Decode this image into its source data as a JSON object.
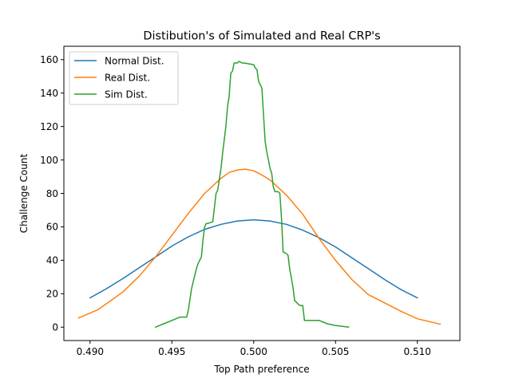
{
  "chart_data": {
    "type": "line",
    "title": "Distibution's of Simulated and Real CRP's",
    "xlabel": "Top Path preference",
    "ylabel": "Challenge Count",
    "xlim": [
      0.4884,
      0.5126
    ],
    "ylim": [
      -8,
      168
    ],
    "xticks": [
      0.49,
      0.495,
      0.5,
      0.505,
      0.51
    ],
    "xtick_labels": [
      "0.490",
      "0.495",
      "0.500",
      "0.505",
      "0.510"
    ],
    "yticks": [
      0,
      20,
      40,
      60,
      80,
      100,
      120,
      140,
      160
    ],
    "ytick_labels": [
      "0",
      "20",
      "40",
      "60",
      "80",
      "100",
      "120",
      "140",
      "160"
    ],
    "grid": false,
    "legend_position": "upper left",
    "series": [
      {
        "name": "Normal Dist.",
        "color": "#1f77b4",
        "x": [
          0.49,
          0.491,
          0.492,
          0.493,
          0.494,
          0.495,
          0.496,
          0.497,
          0.498,
          0.499,
          0.5,
          0.501,
          0.502,
          0.503,
          0.504,
          0.505,
          0.506,
          0.507,
          0.508,
          0.509,
          0.51
        ],
        "y": [
          17.5,
          23.0,
          29.0,
          35.5,
          42.0,
          48.5,
          54.0,
          58.5,
          61.5,
          63.5,
          64.2,
          63.5,
          61.5,
          58.0,
          53.5,
          48.0,
          41.5,
          35.0,
          28.5,
          22.5,
          17.5
        ]
      },
      {
        "name": "Real Dist.",
        "color": "#ff7f0e",
        "x": [
          0.4893,
          0.4905,
          0.492,
          0.493,
          0.494,
          0.495,
          0.496,
          0.497,
          0.498,
          0.4985,
          0.499,
          0.4995,
          0.5,
          0.5005,
          0.501,
          0.502,
          0.503,
          0.504,
          0.505,
          0.506,
          0.507,
          0.508,
          0.509,
          0.51,
          0.5114
        ],
        "y": [
          5.5,
          10.5,
          21.0,
          30.5,
          42.0,
          55.0,
          68.0,
          80.0,
          89.0,
          92.5,
          94.0,
          94.5,
          93.5,
          91.0,
          88.0,
          79.0,
          67.5,
          53.0,
          40.0,
          28.5,
          19.5,
          14.5,
          9.5,
          5.0,
          1.8
        ]
      },
      {
        "name": "Sim Dist.",
        "color": "#2ca02c",
        "x": [
          0.494,
          0.4945,
          0.495,
          0.4955,
          0.4959,
          0.496,
          0.4962,
          0.4965,
          0.4966,
          0.4967,
          0.4968,
          0.4969,
          0.497,
          0.4971,
          0.4972,
          0.4975,
          0.4977,
          0.4978,
          0.498,
          0.4981,
          0.4983,
          0.4984,
          0.4985,
          0.4986,
          0.4987,
          0.4988,
          0.499,
          0.4991,
          0.4993,
          0.4994,
          0.5,
          0.5001,
          0.5002,
          0.5003,
          0.5005,
          0.5007,
          0.5008,
          0.5009,
          0.501,
          0.5011,
          0.5012,
          0.5013,
          0.5015,
          0.5016,
          0.5017,
          0.5018,
          0.502,
          0.5021,
          0.5022,
          0.5024,
          0.5025,
          0.5026,
          0.5028,
          0.503,
          0.5031,
          0.5032,
          0.5038,
          0.504,
          0.5045,
          0.505,
          0.5058
        ],
        "y": [
          0.0,
          2.0,
          4.0,
          6.0,
          6.0,
          10.0,
          23.0,
          35.0,
          38.0,
          40.0,
          42.0,
          52.0,
          60.0,
          62.0,
          62.0,
          63.0,
          80.0,
          82.0,
          95.0,
          104.0,
          120.0,
          132.0,
          138.0,
          152.0,
          153.0,
          158.0,
          158.0,
          159.0,
          158.0,
          158.0,
          157.0,
          155.0,
          154.0,
          147.0,
          143.0,
          111.0,
          105.0,
          100.0,
          95.0,
          92.0,
          84.0,
          81.0,
          81.0,
          80.0,
          65.0,
          45.0,
          44.0,
          43.0,
          35.0,
          24.0,
          16.0,
          15.0,
          13.0,
          13.0,
          4.0,
          4.0,
          4.0,
          4.0,
          2.0,
          1.0,
          0.0
        ]
      }
    ]
  }
}
